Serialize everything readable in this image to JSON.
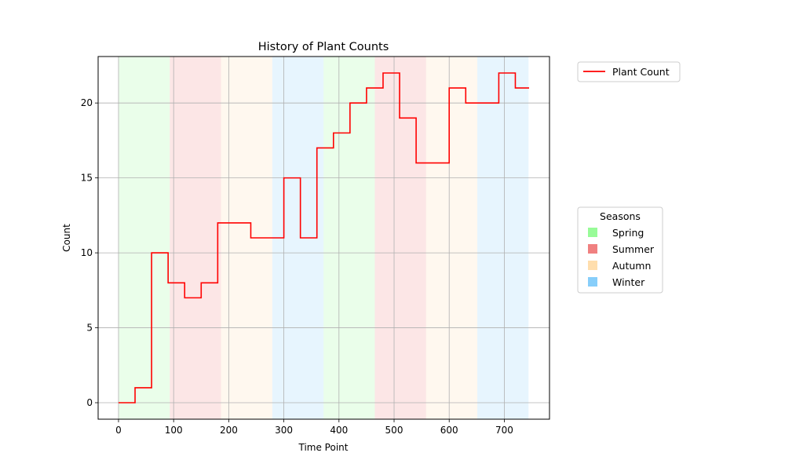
{
  "chart_data": {
    "type": "line",
    "title": "History of Plant Counts",
    "xlabel": "Time Point",
    "ylabel": "Count",
    "xlim": [
      -37,
      782
    ],
    "ylim": [
      -1.1,
      23.1
    ],
    "x_ticks": [
      0,
      100,
      200,
      300,
      400,
      500,
      600,
      700
    ],
    "y_ticks": [
      0,
      5,
      10,
      15,
      20
    ],
    "grid": true,
    "line_style": "step-post",
    "series": [
      {
        "name": "Plant Count",
        "color": "#ff0000",
        "x": [
          0,
          30,
          60,
          90,
          120,
          150,
          180,
          210,
          240,
          270,
          300,
          330,
          360,
          390,
          420,
          450,
          480,
          510,
          540,
          570,
          600,
          630,
          660,
          690,
          720,
          745
        ],
        "y": [
          0,
          1,
          10,
          8,
          7,
          8,
          12,
          12,
          11,
          11,
          15,
          11,
          17,
          18,
          20,
          21,
          22,
          19,
          16,
          16,
          21,
          20,
          20,
          22,
          21,
          21
        ]
      }
    ],
    "season_bands": [
      {
        "season": "Spring",
        "start": 0,
        "end": 93
      },
      {
        "season": "Summer",
        "start": 93,
        "end": 186
      },
      {
        "season": "Autumn",
        "start": 186,
        "end": 279
      },
      {
        "season": "Winter",
        "start": 279,
        "end": 372
      },
      {
        "season": "Spring",
        "start": 372,
        "end": 465
      },
      {
        "season": "Summer",
        "start": 465,
        "end": 558
      },
      {
        "season": "Autumn",
        "start": 558,
        "end": 651
      },
      {
        "season": "Winter",
        "start": 651,
        "end": 744
      }
    ],
    "seasons": [
      {
        "name": "Spring",
        "color": "#98fb98"
      },
      {
        "name": "Summer",
        "color": "#f08080"
      },
      {
        "name": "Autumn",
        "color": "#ffdead"
      },
      {
        "name": "Winter",
        "color": "#87cefa"
      }
    ],
    "legend_placement": "outside-right-top",
    "seasons_legend_title": "Seasons",
    "seasons_legend_placement": "outside-right-center"
  }
}
